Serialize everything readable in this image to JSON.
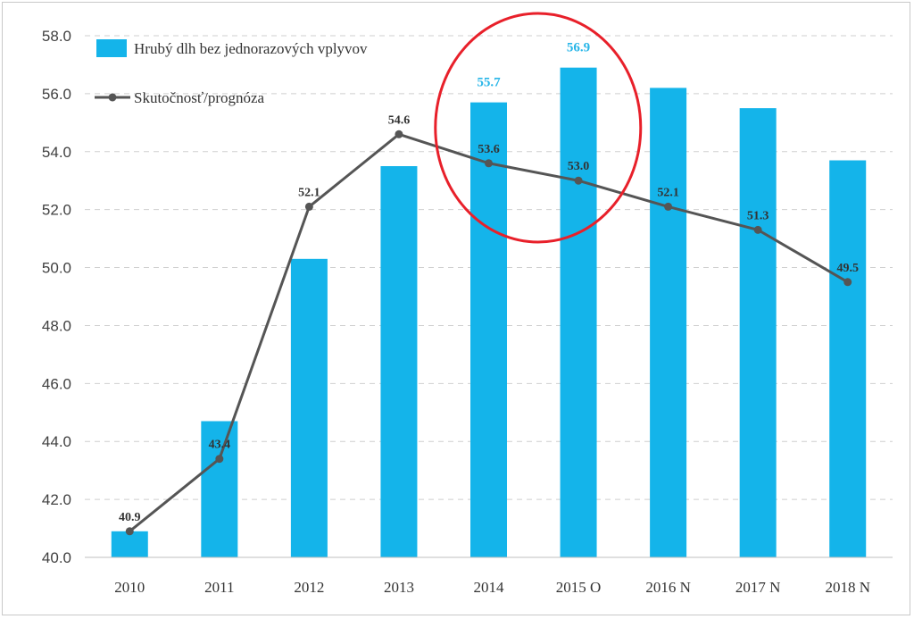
{
  "chart_data": {
    "type": "bar",
    "title": "",
    "xlabel": "",
    "ylabel": "",
    "ylim": [
      40.0,
      58.0
    ],
    "yticks": [
      "40.0",
      "42.0",
      "44.0",
      "46.0",
      "48.0",
      "50.0",
      "52.0",
      "54.0",
      "56.0",
      "58.0"
    ],
    "categories": [
      "2010",
      "2011",
      "2012",
      "2013",
      "2014",
      "2015 O",
      "2016 N",
      "2017 N",
      "2018 N"
    ],
    "series": [
      {
        "name": "Hrubý dlh bez jednorazových vplyvov",
        "kind": "bar",
        "color": "#14b4ea",
        "values": [
          40.9,
          44.7,
          50.3,
          53.5,
          55.7,
          56.9,
          56.2,
          55.5,
          53.7
        ],
        "labels": [
          "",
          "",
          "",
          "",
          "55.7",
          "56.9",
          "",
          "",
          ""
        ]
      },
      {
        "name": "Skutočnosť/prognóza",
        "kind": "line",
        "color": "#555555",
        "values": [
          40.9,
          43.4,
          52.1,
          54.6,
          53.6,
          53.0,
          52.1,
          51.3,
          49.5
        ],
        "labels": [
          "40.9",
          "43.4",
          "52.1",
          "54.6",
          "53.6",
          "53.0",
          "52.1",
          "51.3",
          "49.5"
        ]
      }
    ],
    "grid": "horizontal dashed",
    "legend": "top-left",
    "annotation": {
      "type": "red ellipse",
      "highlights": [
        "2014",
        "2015 O"
      ],
      "color": "#e8202a"
    }
  }
}
